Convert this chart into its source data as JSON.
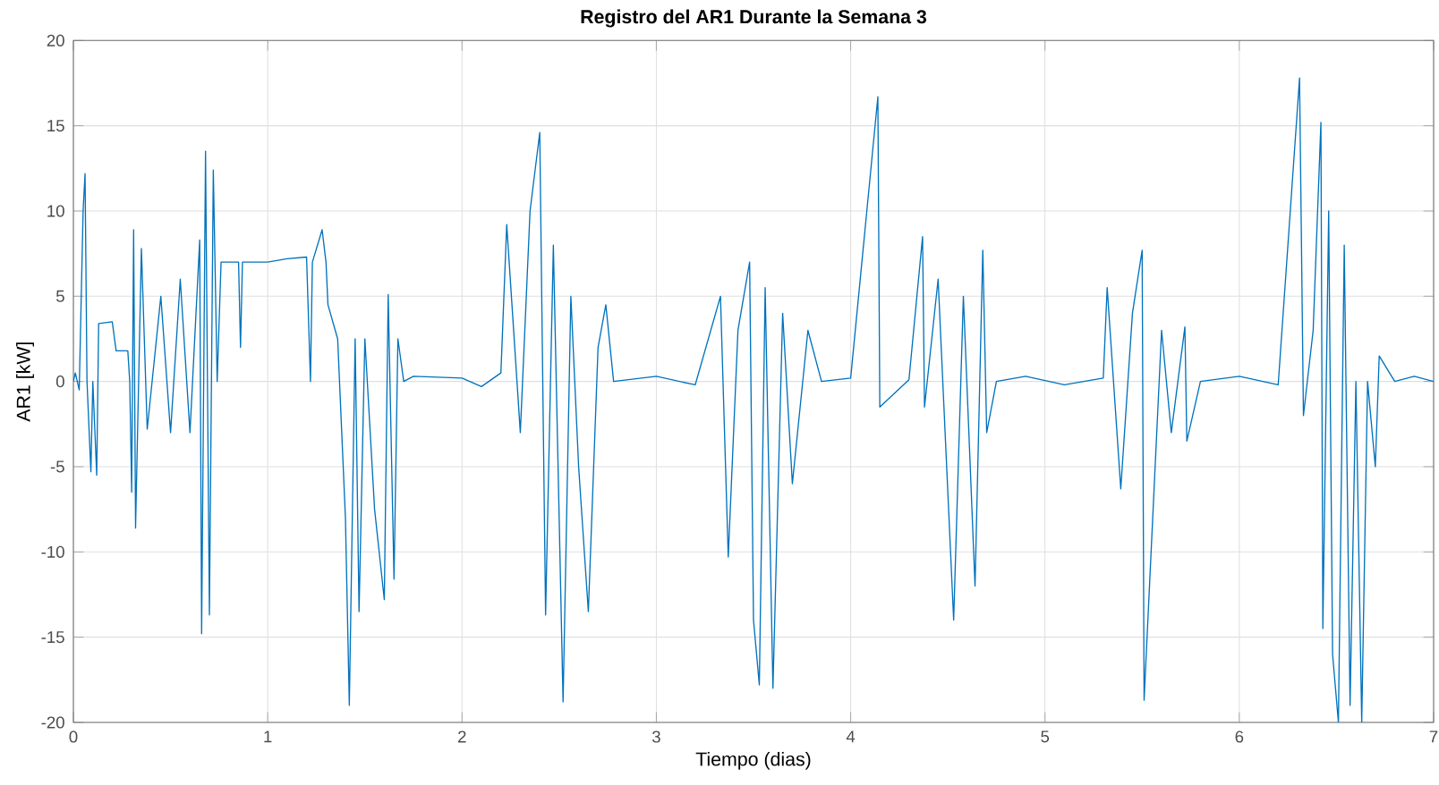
{
  "chart_data": {
    "type": "line",
    "title": "**Registro del AR1 Durante la Semana 3**",
    "xlabel": "Tiempo (dias)",
    "ylabel": "AR1 [kW]",
    "xlim": [
      0,
      7
    ],
    "ylim": [
      -20,
      20
    ],
    "xticks": [
      0,
      1,
      2,
      3,
      4,
      5,
      6,
      7
    ],
    "yticks": [
      -20,
      -15,
      -10,
      -5,
      0,
      5,
      10,
      15,
      20
    ],
    "grid": true,
    "series": [
      {
        "color": "#0072bd",
        "x": [
          0,
          0.01,
          0.03,
          0.05,
          0.06,
          0.07,
          0.09,
          0.1,
          0.12,
          0.13,
          0.2,
          0.22,
          0.28,
          0.29,
          0.3,
          0.31,
          0.32,
          0.35,
          0.38,
          0.45,
          0.5,
          0.55,
          0.6,
          0.65,
          0.66,
          0.68,
          0.7,
          0.72,
          0.74,
          0.76,
          0.85,
          0.86,
          0.87,
          1.0,
          1.1,
          1.2,
          1.22,
          1.23,
          1.28,
          1.3,
          1.31,
          1.36,
          1.4,
          1.42,
          1.45,
          1.47,
          1.5,
          1.55,
          1.6,
          1.62,
          1.65,
          1.67,
          1.7,
          1.75,
          2.0,
          2.1,
          2.2,
          2.23,
          2.3,
          2.35,
          2.4,
          2.43,
          2.47,
          2.52,
          2.56,
          2.6,
          2.65,
          2.7,
          2.74,
          2.78,
          3.0,
          3.2,
          3.33,
          3.37,
          3.42,
          3.48,
          3.5,
          3.53,
          3.56,
          3.6,
          3.65,
          3.7,
          3.78,
          3.85,
          4.0,
          4.14,
          4.15,
          4.3,
          4.37,
          4.38,
          4.45,
          4.53,
          4.58,
          4.64,
          4.68,
          4.7,
          4.75,
          4.9,
          5.1,
          5.3,
          5.32,
          5.39,
          5.45,
          5.5,
          5.51,
          5.6,
          5.65,
          5.72,
          5.73,
          5.8,
          6.0,
          6.2,
          6.31,
          6.33,
          6.38,
          6.42,
          6.43,
          6.46,
          6.48,
          6.51,
          6.54,
          6.57,
          6.6,
          6.63,
          6.66,
          6.7,
          6.72,
          6.8,
          6.9,
          7.0
        ],
        "values": [
          0,
          0.5,
          -0.5,
          10,
          12.2,
          0,
          -5.3,
          0,
          -5.5,
          3.4,
          3.5,
          1.8,
          1.8,
          0,
          -6.5,
          8.9,
          -8.6,
          7.8,
          -2.8,
          5,
          -3,
          6,
          -3,
          8.3,
          -14.8,
          13.5,
          -13.7,
          12.4,
          0,
          7,
          7,
          2,
          7,
          7,
          7.2,
          7.3,
          0,
          7,
          8.9,
          7,
          4.5,
          2.5,
          -8,
          -19,
          2.5,
          -13.5,
          2.5,
          -7.5,
          -12.8,
          5.1,
          -11.6,
          2.5,
          0,
          0.3,
          0.2,
          -0.3,
          0.5,
          9.2,
          -3,
          10,
          14.6,
          -13.7,
          8,
          -18.8,
          5,
          -5,
          -13.5,
          2,
          4.5,
          0,
          0.3,
          -0.2,
          5,
          -10.3,
          3,
          7,
          -14,
          -17.8,
          5.5,
          -18,
          4,
          -6,
          3,
          0,
          0.2,
          16.7,
          -1.5,
          0.1,
          8.5,
          -1.5,
          6,
          -14,
          5,
          -12,
          7.7,
          -3,
          0,
          0.3,
          -0.2,
          0.2,
          5.5,
          -6.3,
          4,
          7.7,
          -18.7,
          3,
          -3,
          3.2,
          -3.5,
          0,
          0.3,
          -0.2,
          17.8,
          -2,
          3,
          15.2,
          -14.5,
          10,
          -16,
          -20,
          8,
          -19,
          0,
          -20,
          0,
          -5,
          1.5,
          0,
          0.3,
          0
        ]
      }
    ]
  }
}
